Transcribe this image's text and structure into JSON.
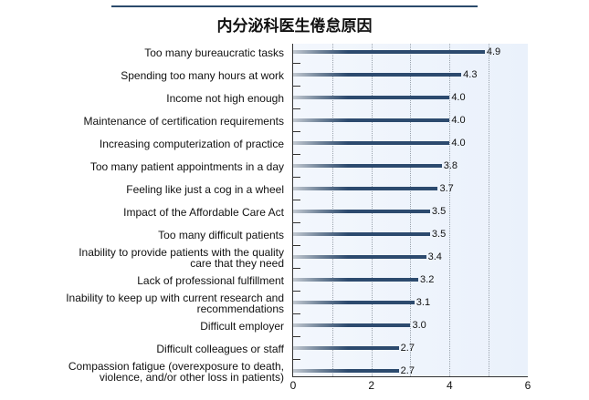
{
  "title": "内分泌科医生倦怠原因",
  "chart_data": {
    "type": "bar",
    "orientation": "horizontal",
    "title": "内分泌科医生倦怠原因",
    "xlabel": "",
    "ylabel": "",
    "xlim": [
      0,
      6
    ],
    "xticks": [
      "0",
      "2",
      "4",
      "6"
    ],
    "grid": "vertical dotted at 1,2,3,4,5",
    "categories": [
      "Too many bureaucratic tasks",
      "Spending too many hours at work",
      "Income not high enough",
      "Maintenance of certification requirements",
      "Increasing computerization of practice",
      "Too many patient appointments in a day",
      "Feeling like just a cog in a wheel",
      "Impact of the Affordable Care Act",
      "Too many difficult patients",
      "Inability to provide patients with the quality care that they need",
      "Lack of professional fulfillment",
      "Inability to keep up with current research and recommendations",
      "Difficult employer",
      "Difficult colleagues or staff",
      "Compassion fatigue (overexposure to death, violence, and/or other loss in patients)"
    ],
    "values": [
      4.9,
      4.3,
      4.0,
      4.0,
      4.0,
      3.8,
      3.7,
      3.5,
      3.5,
      3.4,
      3.2,
      3.1,
      3.0,
      2.7,
      2.7
    ],
    "value_labels": [
      "4.9",
      "4.3",
      "4.0",
      "4.0",
      "4.0",
      "3.8",
      "3.7",
      "3.5",
      "3.5",
      "3.4",
      "3.2",
      "3.1",
      "3.0",
      "2.7",
      "2.7"
    ],
    "bar_color": "#2c4a6e"
  },
  "rows": [
    {
      "line1": "Too many bureaucratic tasks",
      "line2": "",
      "value": "4.9"
    },
    {
      "line1": "Spending too many hours at work",
      "line2": "",
      "value": "4.3"
    },
    {
      "line1": "Income not high enough",
      "line2": "",
      "value": "4.0"
    },
    {
      "line1": "Maintenance of certification requirements",
      "line2": "",
      "value": "4.0"
    },
    {
      "line1": "Increasing computerization of practice",
      "line2": "",
      "value": "4.0"
    },
    {
      "line1": "Too many patient appointments in a day",
      "line2": "",
      "value": "3.8"
    },
    {
      "line1": "Feeling like just a cog in a wheel",
      "line2": "",
      "value": "3.7"
    },
    {
      "line1": "Impact of the Affordable Care Act",
      "line2": "",
      "value": "3.5"
    },
    {
      "line1": "Too many difficult patients",
      "line2": "",
      "value": "3.5"
    },
    {
      "line1": "Inability to provide patients with the quality",
      "line2": "care that they need",
      "value": "3.4"
    },
    {
      "line1": "Lack of professional fulfillment",
      "line2": "",
      "value": "3.2"
    },
    {
      "line1": "Inability to keep up with current research and",
      "line2": "recommendations",
      "value": "3.1"
    },
    {
      "line1": "Difficult employer",
      "line2": "",
      "value": "3.0"
    },
    {
      "line1": "Difficult colleagues or staff",
      "line2": "",
      "value": "2.7"
    },
    {
      "line1": "Compassion fatigue (overexposure to death,",
      "line2": "violence, and/or other loss in patients)",
      "value": "2.7"
    }
  ],
  "x_axis": {
    "ticks": [
      "0",
      "2",
      "4",
      "6"
    ]
  }
}
